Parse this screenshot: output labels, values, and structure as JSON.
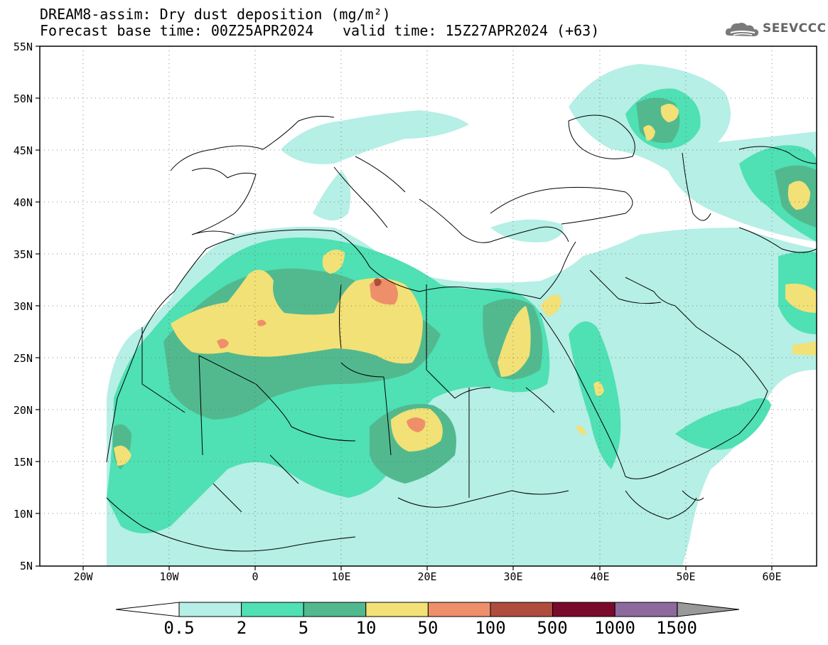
{
  "header": {
    "title_line1": "DREAM8-assim: Dry dust deposition (mg/m²)",
    "title_line2": "Forecast base time: 00Z25APR2024",
    "valid_time": "valid time: 15Z27APR2024 (+63)",
    "logo_text": "SEEVCCC",
    "logo_icon": "cloud-icon"
  },
  "axes": {
    "lat_labels": [
      "55N",
      "50N",
      "45N",
      "40N",
      "35N",
      "30N",
      "25N",
      "20N",
      "15N",
      "10N",
      "5N"
    ],
    "lon_labels": [
      "20W",
      "10W",
      "0",
      "10E",
      "20E",
      "30E",
      "40E",
      "50E",
      "60E"
    ],
    "lat_range": [
      5,
      55
    ],
    "lon_range": [
      -25,
      65
    ],
    "grid": "dotted"
  },
  "colorbar": {
    "labels": [
      "0.5",
      "2",
      "5",
      "10",
      "50",
      "100",
      "500",
      "1000",
      "1500"
    ],
    "colors": [
      "#b5efe6",
      "#4fe0b4",
      "#52b98f",
      "#f2e176",
      "#ee8f6a",
      "#b04c3e",
      "#7a0a2c",
      "#8d6a9e",
      "#999999"
    ],
    "under_color": "#ffffff",
    "over_color": "#999999"
  },
  "palette": {
    "c1": "#b5efe6",
    "c2": "#4fe0b4",
    "c3": "#52b98f",
    "c4": "#f2e176",
    "c5": "#ee8f6a",
    "c6": "#b04c3e"
  }
}
